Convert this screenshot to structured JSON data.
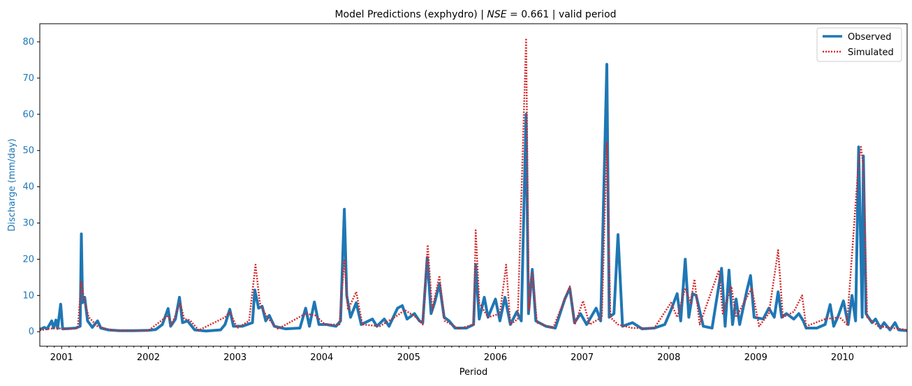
{
  "chart_data": {
    "type": "line",
    "title": "Model Predictions (exphydro) | ",
    "title_math": "NSE",
    "title_value": " = 0.661",
    "title_suffix": " | valid period",
    "xlabel": "Period",
    "ylabel": "Discharge (mm/day)",
    "xlim": [
      "2000-10-01",
      "2010-09-30"
    ],
    "ylim": [
      -4,
      85
    ],
    "y_ticks": [
      0,
      10,
      20,
      30,
      40,
      50,
      60,
      70,
      80
    ],
    "x_ticks": [
      "2001",
      "2002",
      "2003",
      "2004",
      "2005",
      "2006",
      "2007",
      "2008",
      "2009",
      "2010"
    ],
    "legend_position": "top-right",
    "grid": false,
    "colors": {
      "observed": "#1f77b4",
      "simulated": "#d62728",
      "ylabel": "#1f77b4"
    },
    "series": [
      {
        "name": "Observed",
        "style": "solid",
        "points": [
          [
            "2000-10-01",
            0.6
          ],
          [
            "2000-10-20",
            1.2
          ],
          [
            "2000-11-01",
            0.8
          ],
          [
            "2000-11-20",
            3.0
          ],
          [
            "2000-11-28",
            1.0
          ],
          [
            "2000-12-08",
            3.2
          ],
          [
            "2000-12-15",
            0.9
          ],
          [
            "2000-12-28",
            7.6
          ],
          [
            "2001-01-05",
            0.8
          ],
          [
            "2001-02-01",
            0.9
          ],
          [
            "2001-03-01",
            1.0
          ],
          [
            "2001-03-20",
            1.5
          ],
          [
            "2001-03-25",
            27.0
          ],
          [
            "2001-03-30",
            8.0
          ],
          [
            "2001-04-08",
            9.5
          ],
          [
            "2001-04-20",
            3.0
          ],
          [
            "2001-05-10",
            1.2
          ],
          [
            "2001-06-01",
            3.0
          ],
          [
            "2001-06-15",
            1.0
          ],
          [
            "2001-07-15",
            0.5
          ],
          [
            "2001-09-01",
            0.3
          ],
          [
            "2001-11-01",
            0.3
          ],
          [
            "2002-01-01",
            0.4
          ],
          [
            "2002-02-01",
            0.6
          ],
          [
            "2002-03-01",
            2.0
          ],
          [
            "2002-03-25",
            6.4
          ],
          [
            "2002-04-05",
            1.5
          ],
          [
            "2002-04-25",
            3.5
          ],
          [
            "2002-05-12",
            9.5
          ],
          [
            "2002-05-25",
            2.5
          ],
          [
            "2002-06-15",
            3.0
          ],
          [
            "2002-07-15",
            0.5
          ],
          [
            "2002-09-01",
            0.2
          ],
          [
            "2002-11-01",
            0.5
          ],
          [
            "2002-11-20",
            2.0
          ],
          [
            "2002-12-10",
            6.2
          ],
          [
            "2002-12-25",
            1.5
          ],
          [
            "2003-02-01",
            1.5
          ],
          [
            "2003-03-15",
            2.5
          ],
          [
            "2003-03-25",
            11.5
          ],
          [
            "2003-04-10",
            6.5
          ],
          [
            "2003-04-25",
            7.0
          ],
          [
            "2003-05-10",
            3.0
          ],
          [
            "2003-05-25",
            4.5
          ],
          [
            "2003-06-15",
            1.5
          ],
          [
            "2003-08-01",
            0.8
          ],
          [
            "2003-10-01",
            1.0
          ],
          [
            "2003-10-25",
            6.5
          ],
          [
            "2003-11-10",
            1.5
          ],
          [
            "2003-12-01",
            8.2
          ],
          [
            "2003-12-20",
            2.0
          ],
          [
            "2004-01-20",
            2.0
          ],
          [
            "2004-03-01",
            1.5
          ],
          [
            "2004-03-20",
            3.0
          ],
          [
            "2004-04-05",
            33.8
          ],
          [
            "2004-04-15",
            10.0
          ],
          [
            "2004-05-01",
            4.0
          ],
          [
            "2004-05-25",
            8.0
          ],
          [
            "2004-06-15",
            2.0
          ],
          [
            "2004-08-01",
            3.5
          ],
          [
            "2004-08-20",
            1.5
          ],
          [
            "2004-09-20",
            3.5
          ],
          [
            "2004-10-10",
            1.5
          ],
          [
            "2004-11-15",
            6.5
          ],
          [
            "2004-12-05",
            7.2
          ],
          [
            "2004-12-25",
            3.5
          ],
          [
            "2005-01-25",
            5.0
          ],
          [
            "2005-02-15",
            3.0
          ],
          [
            "2005-03-01",
            2.5
          ],
          [
            "2005-03-20",
            20.5
          ],
          [
            "2005-04-05",
            5.0
          ],
          [
            "2005-04-20",
            8.0
          ],
          [
            "2005-05-10",
            13.2
          ],
          [
            "2005-05-30",
            4.0
          ],
          [
            "2005-06-20",
            3.0
          ],
          [
            "2005-07-15",
            1.0
          ],
          [
            "2005-09-01",
            1.0
          ],
          [
            "2005-10-01",
            2.0
          ],
          [
            "2005-10-10",
            18.5
          ],
          [
            "2005-10-25",
            3.5
          ],
          [
            "2005-11-15",
            9.5
          ],
          [
            "2005-12-01",
            4.0
          ],
          [
            "2006-01-01",
            9.0
          ],
          [
            "2006-01-20",
            3.0
          ],
          [
            "2006-02-10",
            9.5
          ],
          [
            "2006-03-05",
            2.0
          ],
          [
            "2006-04-01",
            5.5
          ],
          [
            "2006-04-20",
            3.0
          ],
          [
            "2006-05-10",
            60.0
          ],
          [
            "2006-05-20",
            5.0
          ],
          [
            "2006-06-05",
            17.2
          ],
          [
            "2006-06-20",
            3.0
          ],
          [
            "2006-08-01",
            1.5
          ],
          [
            "2006-09-10",
            1.0
          ],
          [
            "2006-10-20",
            9.0
          ],
          [
            "2006-11-10",
            12.0
          ],
          [
            "2006-11-30",
            2.5
          ],
          [
            "2006-12-25",
            5.0
          ],
          [
            "2007-01-20",
            2.0
          ],
          [
            "2007-03-01",
            6.5
          ],
          [
            "2007-03-20",
            3.0
          ],
          [
            "2007-04-15",
            73.8
          ],
          [
            "2007-04-25",
            4.0
          ],
          [
            "2007-05-15",
            5.0
          ],
          [
            "2007-06-01",
            26.8
          ],
          [
            "2007-06-20",
            1.5
          ],
          [
            "2007-08-01",
            2.5
          ],
          [
            "2007-09-10",
            0.8
          ],
          [
            "2007-11-01",
            1.0
          ],
          [
            "2007-12-15",
            2.0
          ],
          [
            "2008-01-10",
            6.0
          ],
          [
            "2008-02-05",
            10.5
          ],
          [
            "2008-02-20",
            3.0
          ],
          [
            "2008-03-10",
            20.0
          ],
          [
            "2008-03-25",
            4.0
          ],
          [
            "2008-04-10",
            10.5
          ],
          [
            "2008-04-25",
            10.0
          ],
          [
            "2008-05-25",
            1.5
          ],
          [
            "2008-07-01",
            1.0
          ],
          [
            "2008-07-30",
            13.0
          ],
          [
            "2008-08-10",
            17.5
          ],
          [
            "2008-08-25",
            1.5
          ],
          [
            "2008-09-10",
            17.0
          ],
          [
            "2008-09-25",
            2.0
          ],
          [
            "2008-10-10",
            9.0
          ],
          [
            "2008-10-25",
            2.0
          ],
          [
            "2008-11-25",
            11.5
          ],
          [
            "2008-12-10",
            15.5
          ],
          [
            "2008-12-25",
            4.0
          ],
          [
            "2009-02-01",
            3.5
          ],
          [
            "2009-02-25",
            6.5
          ],
          [
            "2009-03-20",
            4.0
          ],
          [
            "2009-04-05",
            11.0
          ],
          [
            "2009-04-20",
            4.0
          ],
          [
            "2009-05-10",
            5.0
          ],
          [
            "2009-06-10",
            3.5
          ],
          [
            "2009-07-01",
            5.0
          ],
          [
            "2009-07-20",
            3.0
          ],
          [
            "2009-08-01",
            1.0
          ],
          [
            "2009-09-15",
            1.0
          ],
          [
            "2009-10-20",
            2.0
          ],
          [
            "2009-11-10",
            7.5
          ],
          [
            "2009-11-25",
            1.5
          ],
          [
            "2009-12-15",
            4.5
          ],
          [
            "2010-01-05",
            8.5
          ],
          [
            "2010-01-25",
            2.0
          ],
          [
            "2010-02-10",
            10.0
          ],
          [
            "2010-02-25",
            3.0
          ],
          [
            "2010-03-10",
            51.0
          ],
          [
            "2010-03-25",
            4.0
          ],
          [
            "2010-03-30",
            48.5
          ],
          [
            "2010-04-10",
            5.0
          ],
          [
            "2010-05-05",
            2.5
          ],
          [
            "2010-05-20",
            3.5
          ],
          [
            "2010-06-10",
            1.0
          ],
          [
            "2010-06-25",
            2.5
          ],
          [
            "2010-07-20",
            0.5
          ],
          [
            "2010-08-10",
            2.5
          ],
          [
            "2010-08-25",
            0.5
          ],
          [
            "2010-09-30",
            0.3
          ]
        ]
      },
      {
        "name": "Simulated",
        "style": "dotted",
        "points": [
          [
            "2000-10-01",
            0.4
          ],
          [
            "2000-12-01",
            1.0
          ],
          [
            "2001-02-01",
            0.7
          ],
          [
            "2001-03-10",
            1.0
          ],
          [
            "2001-03-25",
            14.0
          ],
          [
            "2001-04-05",
            9.0
          ],
          [
            "2001-04-25",
            4.0
          ],
          [
            "2001-06-01",
            1.5
          ],
          [
            "2001-08-01",
            0.4
          ],
          [
            "2002-01-01",
            0.3
          ],
          [
            "2002-03-25",
            4.5
          ],
          [
            "2002-04-10",
            2.0
          ],
          [
            "2002-05-15",
            8.0
          ],
          [
            "2002-06-01",
            3.5
          ],
          [
            "2002-06-25",
            3.2
          ],
          [
            "2002-08-01",
            0.4
          ],
          [
            "2002-11-20",
            4.0
          ],
          [
            "2002-12-10",
            5.5
          ],
          [
            "2003-01-10",
            1.0
          ],
          [
            "2003-03-01",
            3.0
          ],
          [
            "2003-03-28",
            18.5
          ],
          [
            "2003-04-15",
            8.0
          ],
          [
            "2003-05-15",
            4.0
          ],
          [
            "2003-07-01",
            0.8
          ],
          [
            "2003-10-25",
            5.0
          ],
          [
            "2003-12-05",
            4.5
          ],
          [
            "2004-01-15",
            2.0
          ],
          [
            "2004-03-15",
            2.0
          ],
          [
            "2004-04-05",
            20.0
          ],
          [
            "2004-04-20",
            6.0
          ],
          [
            "2004-05-25",
            11.0
          ],
          [
            "2004-06-20",
            2.0
          ],
          [
            "2004-09-01",
            1.5
          ],
          [
            "2004-11-15",
            4.5
          ],
          [
            "2004-12-15",
            6.0
          ],
          [
            "2005-02-01",
            4.0
          ],
          [
            "2005-03-01",
            2.0
          ],
          [
            "2005-03-22",
            24.0
          ],
          [
            "2005-04-10",
            6.0
          ],
          [
            "2005-05-10",
            15.5
          ],
          [
            "2005-06-01",
            3.0
          ],
          [
            "2005-08-01",
            0.8
          ],
          [
            "2005-10-01",
            2.0
          ],
          [
            "2005-10-10",
            28.0
          ],
          [
            "2005-10-25",
            8.0
          ],
          [
            "2005-12-01",
            4.0
          ],
          [
            "2006-01-20",
            5.0
          ],
          [
            "2006-02-15",
            18.5
          ],
          [
            "2006-03-05",
            2.0
          ],
          [
            "2006-04-05",
            3.5
          ],
          [
            "2006-05-10",
            81.0
          ],
          [
            "2006-05-22",
            6.0
          ],
          [
            "2006-06-05",
            16.5
          ],
          [
            "2006-06-25",
            2.5
          ],
          [
            "2006-09-01",
            1.0
          ],
          [
            "2006-11-10",
            12.5
          ],
          [
            "2006-12-01",
            2.0
          ],
          [
            "2007-01-05",
            8.5
          ],
          [
            "2007-02-01",
            2.0
          ],
          [
            "2007-03-25",
            4.0
          ],
          [
            "2007-04-15",
            52.0
          ],
          [
            "2007-04-30",
            4.0
          ],
          [
            "2007-06-01",
            2.0
          ],
          [
            "2007-08-01",
            1.0
          ],
          [
            "2007-11-01",
            1.0
          ],
          [
            "2008-01-10",
            8.0
          ],
          [
            "2008-02-05",
            4.0
          ],
          [
            "2008-03-10",
            12.0
          ],
          [
            "2008-04-01",
            8.0
          ],
          [
            "2008-04-18",
            14.5
          ],
          [
            "2008-05-10",
            2.0
          ],
          [
            "2008-07-30",
            17.0
          ],
          [
            "2008-08-15",
            5.0
          ],
          [
            "2008-09-20",
            12.5
          ],
          [
            "2008-10-10",
            4.0
          ],
          [
            "2008-12-15",
            12.0
          ],
          [
            "2009-01-15",
            1.5
          ],
          [
            "2009-02-25",
            5.0
          ],
          [
            "2009-04-05",
            22.5
          ],
          [
            "2009-04-25",
            4.0
          ],
          [
            "2009-06-10",
            5.5
          ],
          [
            "2009-07-15",
            10.0
          ],
          [
            "2009-08-01",
            1.5
          ],
          [
            "2009-10-20",
            3.5
          ],
          [
            "2009-12-20",
            4.0
          ],
          [
            "2010-01-20",
            2.0
          ],
          [
            "2010-03-10",
            47.0
          ],
          [
            "2010-03-20",
            51.0
          ],
          [
            "2010-03-30",
            45.5
          ],
          [
            "2010-04-15",
            4.0
          ],
          [
            "2010-06-01",
            1.5
          ],
          [
            "2010-08-01",
            1.0
          ],
          [
            "2010-09-30",
            0.5
          ]
        ]
      }
    ]
  }
}
